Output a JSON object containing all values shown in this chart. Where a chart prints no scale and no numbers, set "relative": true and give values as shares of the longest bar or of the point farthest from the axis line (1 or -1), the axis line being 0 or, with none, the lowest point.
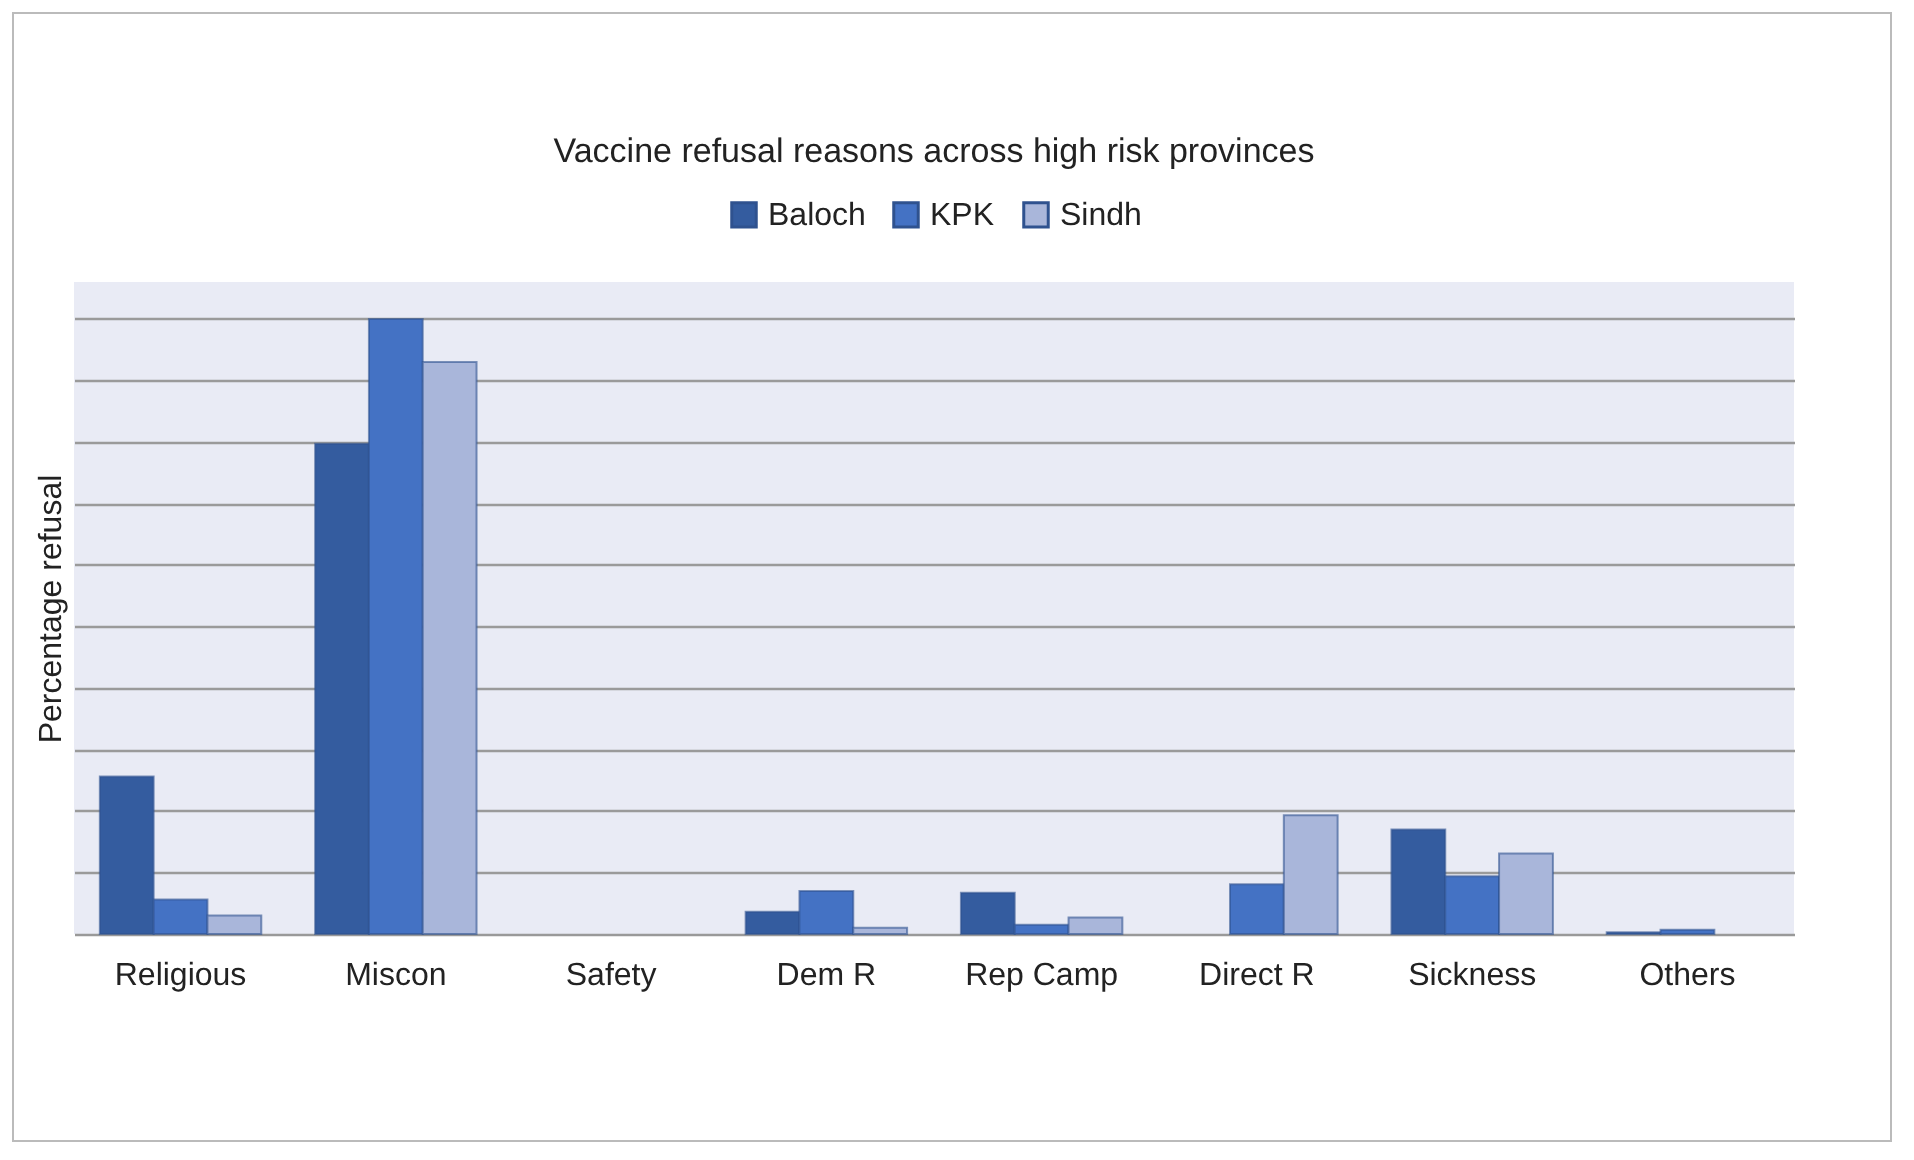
{
  "chart_data": {
    "type": "bar",
    "title": "Vaccine refusal reasons across high risk provinces",
    "ylabel": "Percentage  refusal",
    "relative": true,
    "grid": "y",
    "legend": "top",
    "categories": [
      "Religious",
      "Miscon",
      "Safety",
      "Dem R",
      "Rep Camp",
      "Direct R",
      "Sickness",
      "Others"
    ],
    "series": [
      {
        "name": "Baloch",
        "color": "#345c9f",
        "values": [
          0.256,
          0.797,
          0,
          0.036,
          0.067,
          0,
          0.17,
          0.003
        ]
      },
      {
        "name": "KPK",
        "color": "#4472c4",
        "values": [
          0.056,
          1,
          0,
          0.07,
          0.015,
          0.081,
          0.094,
          0.007
        ]
      },
      {
        "name": "Sindh",
        "color": "#a9b6da",
        "values": [
          0.03,
          0.93,
          0,
          0.01,
          0.027,
          0.193,
          0.131,
          0
        ]
      }
    ]
  }
}
